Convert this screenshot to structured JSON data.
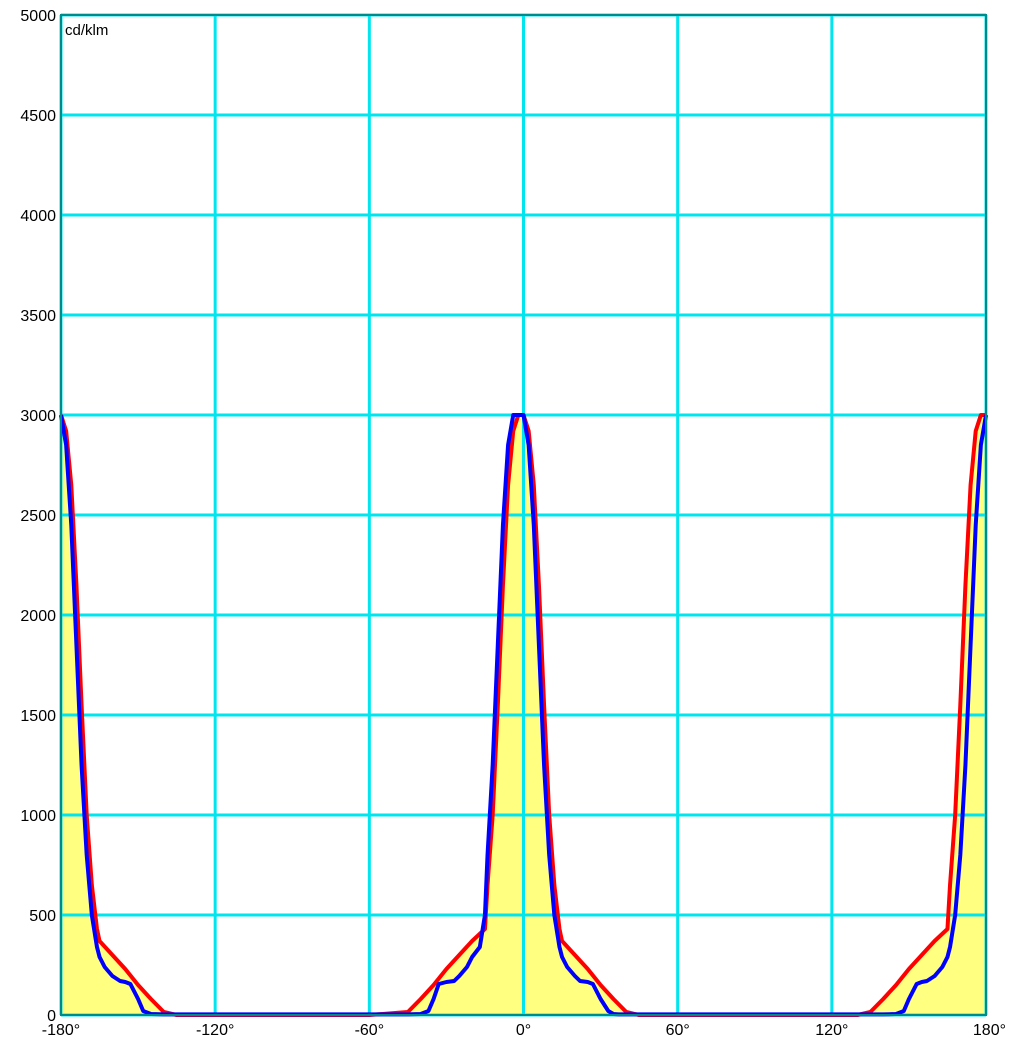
{
  "chart_data": {
    "type": "line",
    "title": "",
    "xlabel": "",
    "ylabel": "cd/klm",
    "xlim": [
      -180,
      180
    ],
    "ylim": [
      0,
      5000
    ],
    "x_ticks": [
      -180,
      -120,
      -60,
      0,
      60,
      120,
      180
    ],
    "x_tick_labels": [
      "-180°",
      "-120°",
      "-60°",
      "0°",
      "60°",
      "120°",
      "180°"
    ],
    "y_ticks": [
      0,
      500,
      1000,
      1500,
      2000,
      2500,
      3000,
      3500,
      4000,
      4500,
      5000
    ],
    "y_tick_labels": [
      "0",
      "500",
      "1000",
      "1500",
      "2000",
      "2500",
      "3000",
      "3500",
      "4000",
      "4500",
      "5000"
    ],
    "grid": true,
    "legend": "none",
    "colors": {
      "background": "#ffffff",
      "grid": "#00e5ee",
      "fill": "#ffff80",
      "series_red": "#ff0000",
      "series_blue": "#0000ff"
    },
    "series": [
      {
        "color": "#ff0000",
        "fill": true,
        "x": [
          -180,
          -178,
          -176,
          -174,
          -172,
          -170,
          -168,
          -166,
          -165,
          -160,
          -155,
          -150,
          -145,
          -140,
          -135,
          -130,
          -120,
          -100,
          -60,
          -45,
          -40,
          -35,
          -30,
          -25,
          -20,
          -15,
          -14,
          -12,
          -10,
          -8,
          -6,
          -4,
          -2,
          0,
          2,
          4,
          6,
          8,
          10,
          12,
          14,
          15,
          20,
          25,
          30,
          35,
          40,
          45,
          60,
          100,
          120,
          130,
          135,
          140,
          145,
          150,
          155,
          160,
          165,
          166,
          168,
          170,
          172,
          174,
          176,
          178,
          180
        ],
        "y": [
          3000,
          2920,
          2650,
          2150,
          1550,
          1000,
          650,
          430,
          370,
          300,
          230,
          150,
          80,
          15,
          0,
          0,
          0,
          0,
          0,
          15,
          80,
          150,
          230,
          300,
          370,
          430,
          650,
          1000,
          1550,
          2150,
          2650,
          2920,
          3000,
          3000,
          2920,
          2650,
          2150,
          1550,
          1000,
          650,
          430,
          370,
          300,
          230,
          150,
          80,
          15,
          0,
          0,
          0,
          0,
          0,
          15,
          80,
          150,
          230,
          300,
          370,
          430,
          650,
          1000,
          1550,
          2150,
          2650,
          2920,
          3000,
          3000
        ]
      },
      {
        "color": "#0000ff",
        "fill": false,
        "x": [
          -180,
          -178,
          -176,
          -174,
          -172,
          -170,
          -168,
          -166,
          -165,
          -163,
          -160,
          -157,
          -155,
          -153,
          -150,
          -148,
          -145,
          -140,
          -130,
          -120,
          -100,
          -60,
          -45,
          -40,
          -37,
          -35,
          -33,
          -30,
          -27,
          -25,
          -22,
          -20,
          -17,
          -15,
          -14,
          -12,
          -10,
          -8,
          -6,
          -4,
          -2,
          0,
          2,
          4,
          6,
          8,
          10,
          12,
          14,
          15,
          17,
          20,
          22,
          25,
          27,
          30,
          33,
          35,
          37,
          40,
          45,
          60,
          100,
          120,
          130,
          140,
          145,
          148,
          150,
          153,
          155,
          157,
          160,
          163,
          165,
          166,
          168,
          170,
          172,
          174,
          176,
          178,
          180
        ],
        "y": [
          3000,
          2850,
          2450,
          1850,
          1250,
          800,
          500,
          340,
          290,
          240,
          195,
          170,
          165,
          155,
          80,
          20,
          5,
          3,
          3,
          3,
          3,
          3,
          3,
          5,
          20,
          80,
          155,
          165,
          170,
          195,
          240,
          290,
          340,
          500,
          800,
          1250,
          1850,
          2450,
          2850,
          3000,
          3000,
          3000,
          2850,
          2450,
          1850,
          1250,
          800,
          500,
          340,
          290,
          240,
          195,
          170,
          165,
          155,
          80,
          20,
          5,
          3,
          3,
          3,
          3,
          3,
          3,
          3,
          3,
          5,
          20,
          80,
          155,
          165,
          170,
          195,
          240,
          290,
          340,
          500,
          800,
          1250,
          1850,
          2450,
          2850,
          3000
        ]
      }
    ]
  }
}
